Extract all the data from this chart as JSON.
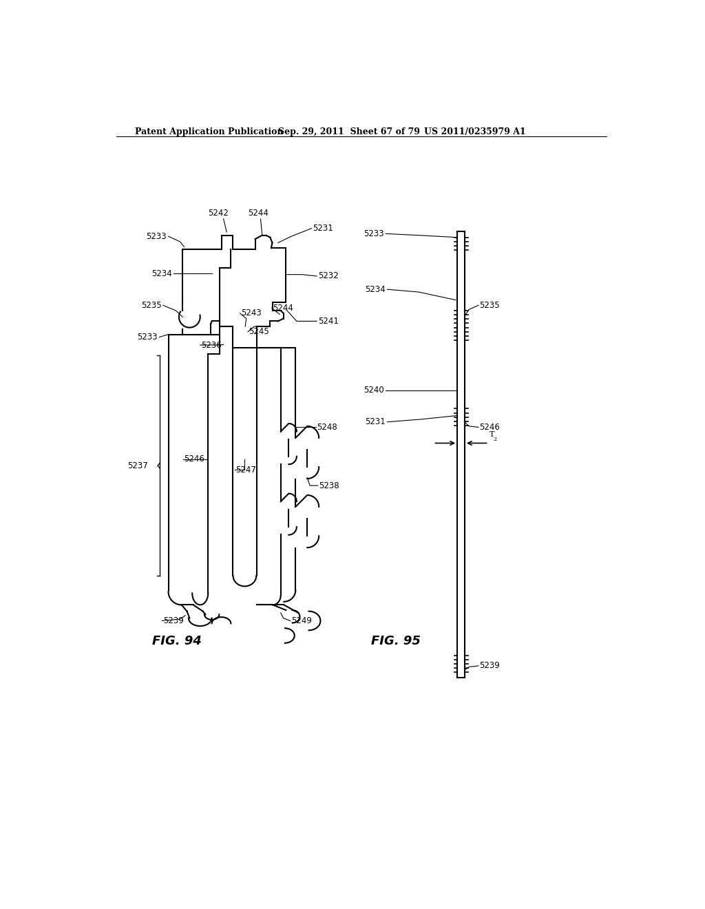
{
  "title_left": "Patent Application Publication",
  "title_mid": "Sep. 29, 2011  Sheet 67 of 79",
  "title_right": "US 2011/0235979 A1",
  "fig94_label": "FIG. 94",
  "fig95_label": "FIG. 95",
  "bg_color": "#ffffff",
  "line_color": "#000000"
}
